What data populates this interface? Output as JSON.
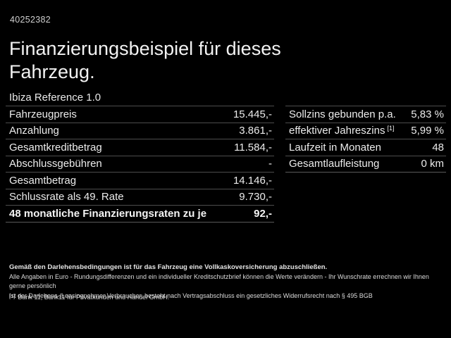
{
  "page": {
    "vehicle_id": "40252382",
    "title": "Finanzierungsbeispiel für dieses\nFahrzeug.",
    "subtitle": "Ibiza Reference 1.0"
  },
  "finance_table": {
    "rows": [
      {
        "label": "Fahrzeugpreis",
        "value": "15.445,-"
      },
      {
        "label": "Anzahlung",
        "value": "3.861,-"
      },
      {
        "label": "Gesamtkreditbetrag",
        "value": "11.584,-"
      },
      {
        "label": "Abschlussgebühren",
        "value": "-"
      },
      {
        "label": "Gesamtbetrag",
        "value": "14.146,-"
      },
      {
        "label": "Schlussrate als 49. Rate",
        "value": "9.730,-"
      },
      {
        "label": "48 monatliche Finanzierungsraten zu je",
        "value": "92,-"
      }
    ]
  },
  "conditions_table": {
    "rows": [
      {
        "label": "Sollzins gebunden p.a.",
        "value": "5,83 %"
      },
      {
        "label": "effektiver Jahreszins",
        "sup": "[1]",
        "value": "5,99 %"
      },
      {
        "label": "Laufzeit in Monaten",
        "value": "48"
      },
      {
        "label": "Gesamtlaufleistung",
        "value": "0 km"
      }
    ]
  },
  "fine_print": {
    "line_bold": "Gemäß den Darlehensbedingungen ist für das Fahrzeug eine Vollkaskoversicherung abzuschließen.",
    "line2": "Alle Angaben in Euro - Rundungsdifferenzen und ein individueller Kreditschutzbrief können die Werte verändern - Ihr Wunschrate errechnen wir Ihnen gerne persönlich",
    "line3": "Ist der Darlehens-/Leasingnehmer Verbraucher, besteht nach Vertragsabschluss ein gesetzliches Widerrufsrecht nach § 495 BGB",
    "footnote_marker": "[1]",
    "footnote_text": "Bank 11, Bank11 für Privatkunden und Handel GmbH."
  },
  "colors": {
    "background": "#000000",
    "text": "#ededed",
    "divider": "#4d4d4d"
  }
}
